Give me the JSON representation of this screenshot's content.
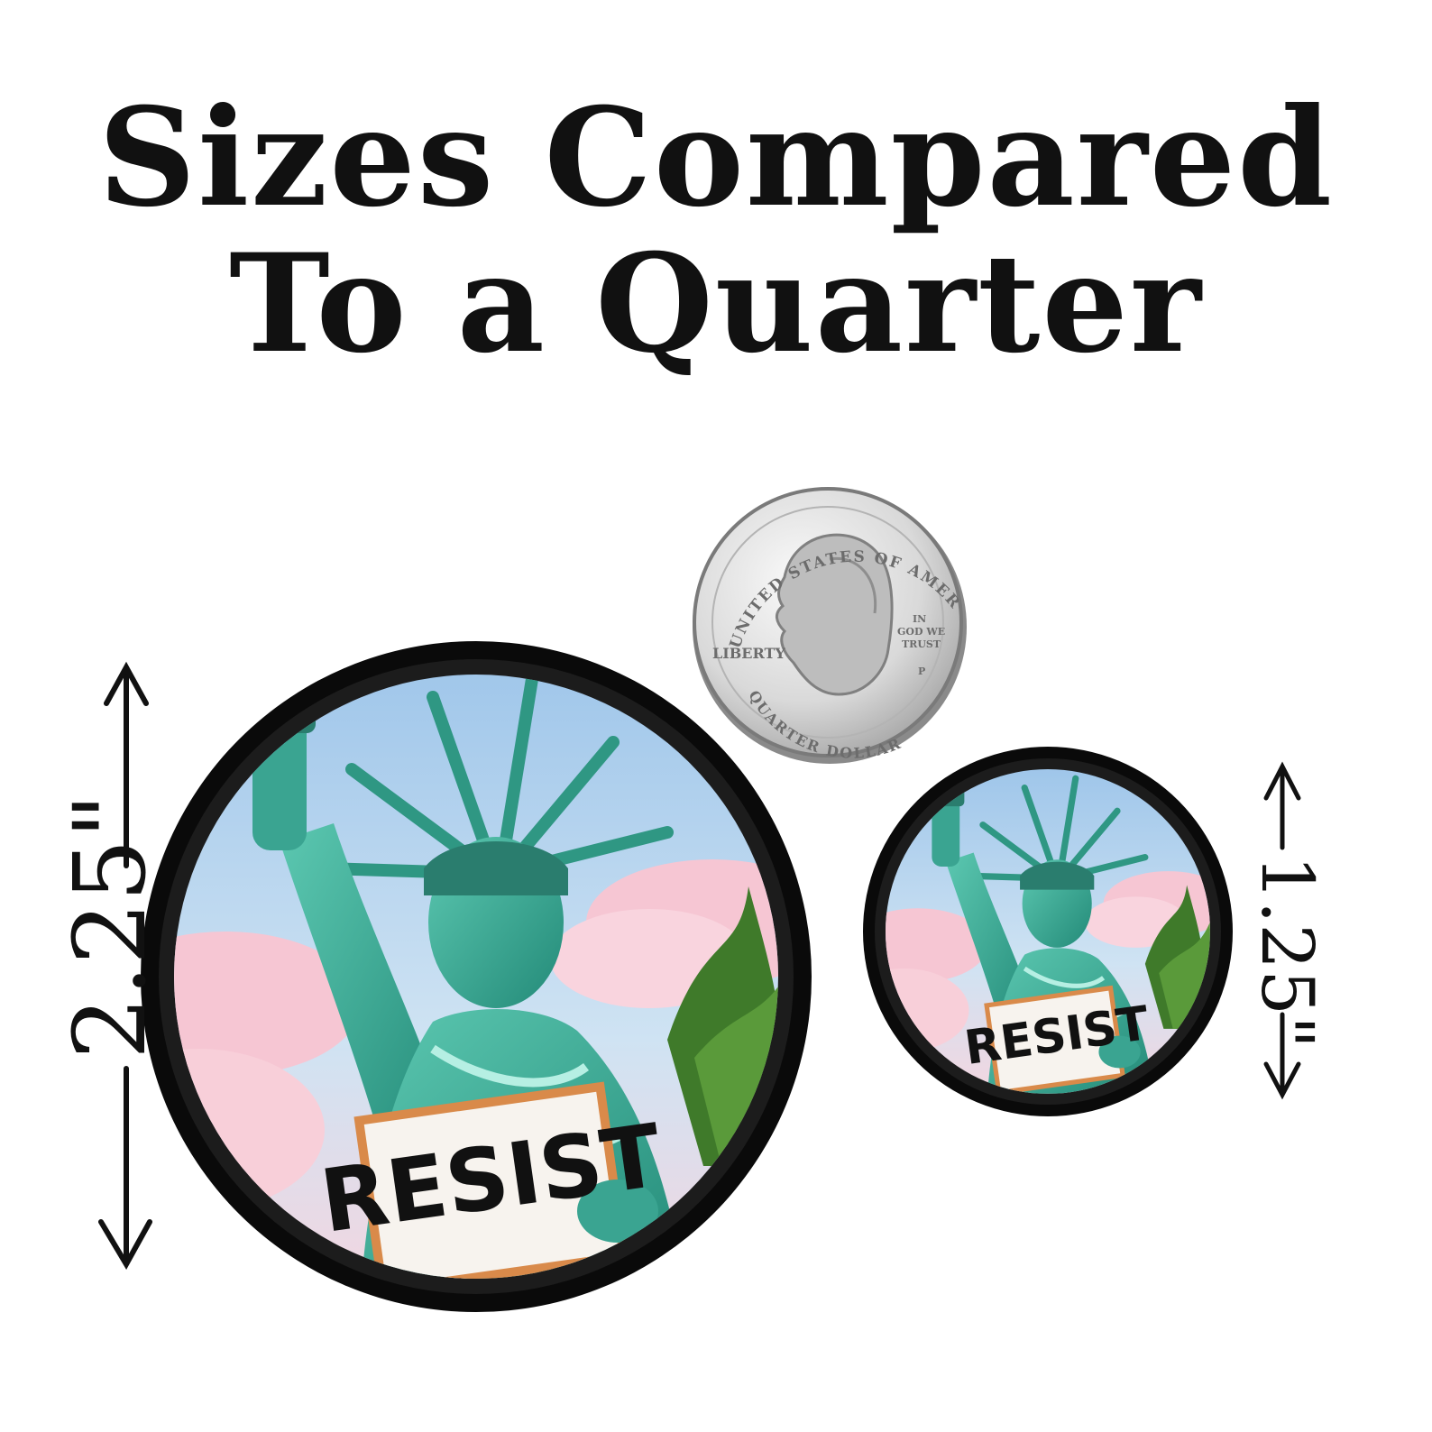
{
  "title": {
    "line1": "Sizes Compared",
    "line2": "To a Quarter"
  },
  "large_sticker": {
    "size_label": "2.25\"",
    "sign_text": "RESIST"
  },
  "small_sticker": {
    "size_label": "1.25\"",
    "sign_text": "RESIST"
  },
  "quarter": {
    "top_text": "UNITED STATES OF AMERICA",
    "bottom_text": "QUARTER DOLLAR",
    "left_text": "LIBERTY",
    "motto_1": "IN",
    "motto_2": "GOD WE",
    "motto_3": "TRUST",
    "mint_mark": "P"
  },
  "colors": {
    "sky": "#bcd8ee",
    "cloud": "#f6c6d3",
    "statue": "#3aa491",
    "rim": "#0a0a0a",
    "sign_border": "#d98a4a",
    "leaf": "#3f7a2a"
  }
}
